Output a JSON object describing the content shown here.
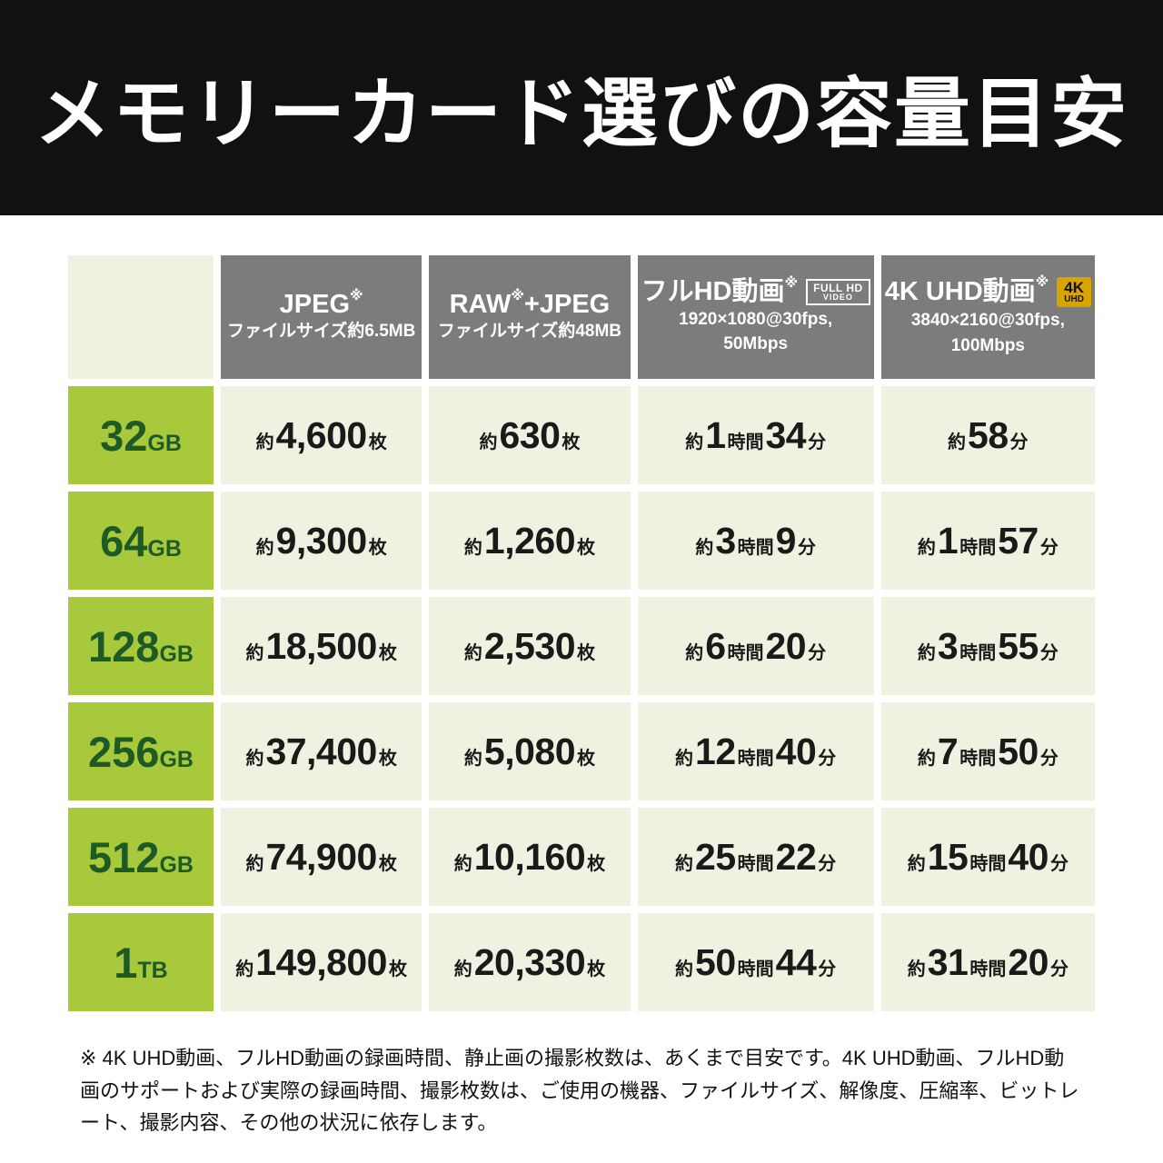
{
  "title": "メモリーカード選びの容量目安",
  "footnote": "※ 4K UHD動画、フルHD動画の録画時間、静止画の撮影枚数は、あくまで目安です。4K UHD動画、フルHD動画のサポートおよび実際の録画時間、撮影枚数は、ご使用の機器、ファイルサイズ、解像度、圧縮率、ビットレート、撮影内容、その他の状況に依存します。",
  "colors": {
    "band_bg": "#111111",
    "header_bg": "#7c7c7c",
    "capacity_bg": "#a8c93b",
    "capacity_text": "#1d5a26",
    "cell_bg": "#f0f2e1",
    "badge_4k_bg": "#d9a400"
  },
  "table": {
    "columns": [
      {
        "title": "JPEG",
        "sup": "※",
        "title2": "",
        "badge": null,
        "sub": [
          "ファイルサイズ約6.5MB"
        ]
      },
      {
        "title": "RAW",
        "sup": "※",
        "title2": "+JPEG",
        "badge": null,
        "sub": [
          "ファイルサイズ約48MB"
        ]
      },
      {
        "title": "フルHD動画",
        "sup": "※",
        "title2": "",
        "badge": {
          "style": "fullhd",
          "lines": [
            "FULL HD",
            "VIDEO"
          ]
        },
        "sub": [
          "1920×1080@30fps,",
          "50Mbps"
        ]
      },
      {
        "title": "4K UHD動画",
        "sup": "※",
        "title2": "",
        "badge": {
          "style": "uhd4k",
          "lines": [
            "4K",
            "UHD"
          ]
        },
        "sub": [
          "3840×2160@30fps,",
          "100Mbps"
        ]
      }
    ],
    "rows": [
      {
        "capacity": [
          [
            "b",
            "32"
          ],
          [
            "s",
            "GB"
          ]
        ],
        "cells": [
          [
            [
              "s",
              "約"
            ],
            [
              "b",
              "4,600"
            ],
            [
              "s",
              "枚"
            ]
          ],
          [
            [
              "s",
              "約"
            ],
            [
              "b",
              "630"
            ],
            [
              "s",
              "枚"
            ]
          ],
          [
            [
              "s",
              "約"
            ],
            [
              "b",
              "1"
            ],
            [
              "s",
              "時間"
            ],
            [
              "b",
              "34"
            ],
            [
              "s",
              "分"
            ]
          ],
          [
            [
              "s",
              "約"
            ],
            [
              "b",
              "58"
            ],
            [
              "s",
              "分"
            ]
          ]
        ]
      },
      {
        "capacity": [
          [
            "b",
            "64"
          ],
          [
            "s",
            "GB"
          ]
        ],
        "cells": [
          [
            [
              "s",
              "約"
            ],
            [
              "b",
              "9,300"
            ],
            [
              "s",
              "枚"
            ]
          ],
          [
            [
              "s",
              "約"
            ],
            [
              "b",
              "1,260"
            ],
            [
              "s",
              "枚"
            ]
          ],
          [
            [
              "s",
              "約"
            ],
            [
              "b",
              "3"
            ],
            [
              "s",
              "時間"
            ],
            [
              "b",
              "9"
            ],
            [
              "s",
              "分"
            ]
          ],
          [
            [
              "s",
              "約"
            ],
            [
              "b",
              "1"
            ],
            [
              "s",
              "時間"
            ],
            [
              "b",
              "57"
            ],
            [
              "s",
              "分"
            ]
          ]
        ]
      },
      {
        "capacity": [
          [
            "b",
            "128"
          ],
          [
            "s",
            "GB"
          ]
        ],
        "cells": [
          [
            [
              "s",
              "約"
            ],
            [
              "b",
              "18,500"
            ],
            [
              "s",
              "枚"
            ]
          ],
          [
            [
              "s",
              "約"
            ],
            [
              "b",
              "2,530"
            ],
            [
              "s",
              "枚"
            ]
          ],
          [
            [
              "s",
              "約"
            ],
            [
              "b",
              "6"
            ],
            [
              "s",
              "時間"
            ],
            [
              "b",
              "20"
            ],
            [
              "s",
              "分"
            ]
          ],
          [
            [
              "s",
              "約"
            ],
            [
              "b",
              "3"
            ],
            [
              "s",
              "時間"
            ],
            [
              "b",
              "55"
            ],
            [
              "s",
              "分"
            ]
          ]
        ]
      },
      {
        "capacity": [
          [
            "b",
            "256"
          ],
          [
            "s",
            "GB"
          ]
        ],
        "cells": [
          [
            [
              "s",
              "約"
            ],
            [
              "b",
              "37,400"
            ],
            [
              "s",
              "枚"
            ]
          ],
          [
            [
              "s",
              "約"
            ],
            [
              "b",
              "5,080"
            ],
            [
              "s",
              "枚"
            ]
          ],
          [
            [
              "s",
              "約"
            ],
            [
              "b",
              "12"
            ],
            [
              "s",
              "時間"
            ],
            [
              "b",
              "40"
            ],
            [
              "s",
              "分"
            ]
          ],
          [
            [
              "s",
              "約"
            ],
            [
              "b",
              "7"
            ],
            [
              "s",
              "時間"
            ],
            [
              "b",
              "50"
            ],
            [
              "s",
              "分"
            ]
          ]
        ]
      },
      {
        "capacity": [
          [
            "b",
            "512"
          ],
          [
            "s",
            "GB"
          ]
        ],
        "cells": [
          [
            [
              "s",
              "約"
            ],
            [
              "b",
              "74,900"
            ],
            [
              "s",
              "枚"
            ]
          ],
          [
            [
              "s",
              "約"
            ],
            [
              "b",
              "10,160"
            ],
            [
              "s",
              "枚"
            ]
          ],
          [
            [
              "s",
              "約"
            ],
            [
              "b",
              "25"
            ],
            [
              "s",
              "時間"
            ],
            [
              "b",
              "22"
            ],
            [
              "s",
              "分"
            ]
          ],
          [
            [
              "s",
              "約"
            ],
            [
              "b",
              "15"
            ],
            [
              "s",
              "時間"
            ],
            [
              "b",
              "40"
            ],
            [
              "s",
              "分"
            ]
          ]
        ]
      },
      {
        "capacity": [
          [
            "b",
            "1"
          ],
          [
            "s",
            "TB"
          ]
        ],
        "cells": [
          [
            [
              "s",
              "約"
            ],
            [
              "b",
              "149,800"
            ],
            [
              "s",
              "枚"
            ]
          ],
          [
            [
              "s",
              "約"
            ],
            [
              "b",
              "20,330"
            ],
            [
              "s",
              "枚"
            ]
          ],
          [
            [
              "s",
              "約"
            ],
            [
              "b",
              "50"
            ],
            [
              "s",
              "時間"
            ],
            [
              "b",
              "44"
            ],
            [
              "s",
              "分"
            ]
          ],
          [
            [
              "s",
              "約"
            ],
            [
              "b",
              "31"
            ],
            [
              "s",
              "時間"
            ],
            [
              "b",
              "20"
            ],
            [
              "s",
              "分"
            ]
          ]
        ]
      }
    ]
  },
  "chart_data": {
    "type": "table",
    "title": "メモリーカード選びの容量目安",
    "row_headers": [
      "32GB",
      "64GB",
      "128GB",
      "256GB",
      "512GB",
      "1TB"
    ],
    "column_headers": [
      "JPEG※ ファイルサイズ約6.5MB",
      "RAW※+JPEG ファイルサイズ約48MB",
      "フルHD動画※ 1920×1080@30fps, 50Mbps",
      "4K UHD動画※ 3840×2160@30fps, 100Mbps"
    ],
    "cells": [
      [
        "約4,600枚",
        "約630枚",
        "約1時間34分",
        "約58分"
      ],
      [
        "約9,300枚",
        "約1,260枚",
        "約3時間9分",
        "約1時間57分"
      ],
      [
        "約18,500枚",
        "約2,530枚",
        "約6時間20分",
        "約3時間55分"
      ],
      [
        "約37,400枚",
        "約5,080枚",
        "約12時間40分",
        "約7時間50分"
      ],
      [
        "約74,900枚",
        "約10,160枚",
        "約25時間22分",
        "約15時間40分"
      ],
      [
        "約149,800枚",
        "約20,330枚",
        "約50時間44分",
        "約31時間20分"
      ]
    ]
  }
}
